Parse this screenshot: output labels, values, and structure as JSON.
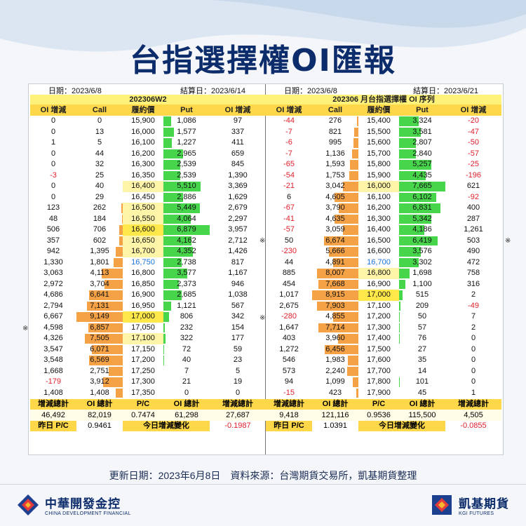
{
  "title": "台指選擇權OI匯報",
  "left": {
    "date": "日期：2023/6/8",
    "settle": "結算日：2023/6/14",
    "banner": "202306W2",
    "headers": [
      "OI 增減",
      "Call",
      "履約價",
      "Put",
      "OI 增減"
    ],
    "rows": [
      {
        "cd": "0",
        "call": "0",
        "strike": "15,900",
        "put": "1,086",
        "pd": "97",
        "cb": 0,
        "pb": 0.16
      },
      {
        "cd": "0",
        "call": "13",
        "strike": "16,000",
        "put": "1,577",
        "pd": "337",
        "cb": 0,
        "pb": 0.23
      },
      {
        "cd": "1",
        "call": "5",
        "strike": "16,100",
        "put": "1,227",
        "pd": "411",
        "cb": 0,
        "pb": 0.18
      },
      {
        "cd": "0",
        "call": "44",
        "strike": "16,200",
        "put": "2,965",
        "pd": "659",
        "cb": 0,
        "pb": 0.43
      },
      {
        "cd": "0",
        "call": "32",
        "strike": "16,300",
        "put": "2,539",
        "pd": "845",
        "cb": 0,
        "pb": 0.37
      },
      {
        "cd": "-3",
        "call": "25",
        "strike": "16,350",
        "put": "2,539",
        "pd": "1,390",
        "cb": 0,
        "pb": 0.37
      },
      {
        "cd": "0",
        "call": "40",
        "strike": "16,400",
        "put": "5,510",
        "pd": "3,369",
        "cb": 0,
        "pb": 0.8,
        "hl": 1
      },
      {
        "cd": "0",
        "call": "29",
        "strike": "16,450",
        "put": "2,886",
        "pd": "1,629",
        "cb": 0,
        "pb": 0.42
      },
      {
        "cd": "123",
        "call": "262",
        "strike": "16,500",
        "put": "5,449",
        "pd": "2,679",
        "cb": 0.03,
        "pb": 0.79,
        "hl": 1
      },
      {
        "cd": "48",
        "call": "184",
        "strike": "16,550",
        "put": "4,064",
        "pd": "2,297",
        "cb": 0.02,
        "pb": 0.59,
        "hl": 1
      },
      {
        "cd": "506",
        "call": "706",
        "strike": "16,600",
        "put": "6,879",
        "pd": "3,957",
        "cb": 0.08,
        "pb": 1,
        "hl": 2
      },
      {
        "cd": "357",
        "call": "602",
        "strike": "16,650",
        "put": "4,162",
        "pd": "2,712",
        "cb": 0.07,
        "pb": 0.6,
        "hl": 1
      },
      {
        "cd": "942",
        "call": "1,395",
        "strike": "16,700",
        "put": "4,352",
        "pd": "1,426",
        "cb": 0.15,
        "pb": 0.63,
        "hl": 1
      },
      {
        "cd": "1,330",
        "call": "1,801",
        "strike": "16,750",
        "put": "2,738",
        "pd": "817",
        "cb": 0.2,
        "pb": 0.4,
        "blue": true
      },
      {
        "cd": "3,063",
        "call": "4,113",
        "strike": "16,800",
        "put": "3,577",
        "pd": "1,167",
        "cb": 0.45,
        "pb": 0.52
      },
      {
        "cd": "2,972",
        "call": "3,704",
        "strike": "16,850",
        "put": "2,373",
        "pd": "946",
        "cb": 0.4,
        "pb": 0.34
      },
      {
        "cd": "4,686",
        "call": "6,641",
        "strike": "16,900",
        "put": "2,685",
        "pd": "1,038",
        "cb": 0.73,
        "pb": 0.39
      },
      {
        "cd": "2,794",
        "call": "7,131",
        "strike": "16,950",
        "put": "1,121",
        "pd": "567",
        "cb": 0.78,
        "pb": 0.16
      },
      {
        "cd": "6,667",
        "call": "9,149",
        "strike": "17,000",
        "put": "806",
        "pd": "342",
        "cb": 1,
        "pb": 0.12,
        "hl": 2
      },
      {
        "cd": "4,598",
        "call": "6,857",
        "strike": "17,050",
        "put": "232",
        "pd": "154",
        "cb": 0.75,
        "pb": 0.03
      },
      {
        "cd": "4,326",
        "call": "7,505",
        "strike": "17,100",
        "put": "322",
        "pd": "177",
        "cb": 0.82,
        "pb": 0.05,
        "hl": 1
      },
      {
        "cd": "3,547",
        "call": "6,071",
        "strike": "17,150",
        "put": "72",
        "pd": "59",
        "cb": 0.66,
        "pb": 0.01
      },
      {
        "cd": "3,548",
        "call": "6,569",
        "strike": "17,200",
        "put": "40",
        "pd": "23",
        "cb": 0.72,
        "pb": 0.01
      },
      {
        "cd": "1,668",
        "call": "2,751",
        "strike": "17,250",
        "put": "7",
        "pd": "5",
        "cb": 0.3,
        "pb": 0
      },
      {
        "cd": "-179",
        "call": "3,912",
        "strike": "17,300",
        "put": "21",
        "pd": "19",
        "cb": 0.43,
        "pb": 0
      },
      {
        "cd": "1,408",
        "call": "1,408",
        "strike": "17,350",
        "put": "0",
        "pd": "0",
        "cb": 0.15,
        "pb": 0
      }
    ],
    "sum_headers": [
      "增減總計",
      "OI 總計",
      "P/C",
      "OI 總計",
      "增減總計"
    ],
    "sum": [
      "46,492",
      "82,019",
      "0.7474",
      "61,298",
      "27,687"
    ],
    "pc_label": "昨日 P/C",
    "pc_value": "0.9461",
    "chg_label": "今日增減變化",
    "chg_value": "-0.1987"
  },
  "right": {
    "date": "日期：2023/6/8",
    "settle": "結算日：2023/6/21",
    "banner": "202306 月台指選擇權 OI 序列",
    "headers": [
      "OI 增減",
      "Call",
      "履約價",
      "Put",
      "OI 增減"
    ],
    "rows": [
      {
        "cd": "-44",
        "call": "276",
        "strike": "15,400",
        "put": "3,324",
        "pd": "-20",
        "cb": 0.03,
        "pb": 0.43
      },
      {
        "cd": "-7",
        "call": "821",
        "strike": "15,500",
        "put": "3,581",
        "pd": "-47",
        "cb": 0.09,
        "pb": 0.47
      },
      {
        "cd": "-6",
        "call": "995",
        "strike": "15,600",
        "put": "2,807",
        "pd": "-50",
        "cb": 0.11,
        "pb": 0.37
      },
      {
        "cd": "-7",
        "call": "1,136",
        "strike": "15,700",
        "put": "2,840",
        "pd": "-57",
        "cb": 0.13,
        "pb": 0.37
      },
      {
        "cd": "-65",
        "call": "1,593",
        "strike": "15,800",
        "put": "5,257",
        "pd": "-25",
        "cb": 0.18,
        "pb": 0.69
      },
      {
        "cd": "-54",
        "call": "1,753",
        "strike": "15,900",
        "put": "4,435",
        "pd": "-196",
        "cb": 0.2,
        "pb": 0.58
      },
      {
        "cd": "-21",
        "call": "3,042",
        "strike": "16,000",
        "put": "7,665",
        "pd": "621",
        "cb": 0.34,
        "pb": 1,
        "hl": 1
      },
      {
        "cd": "6",
        "call": "4,605",
        "strike": "16,100",
        "put": "6,102",
        "pd": "-92",
        "cb": 0.52,
        "pb": 0.8
      },
      {
        "cd": "-67",
        "call": "3,790",
        "strike": "16,200",
        "put": "6,831",
        "pd": "400",
        "cb": 0.43,
        "pb": 0.89
      },
      {
        "cd": "-41",
        "call": "4,635",
        "strike": "16,300",
        "put": "5,342",
        "pd": "287",
        "cb": 0.52,
        "pb": 0.7
      },
      {
        "cd": "-57",
        "call": "3,059",
        "strike": "16,400",
        "put": "4,186",
        "pd": "1,261",
        "cb": 0.34,
        "pb": 0.55
      },
      {
        "cd": "50",
        "call": "6,674",
        "strike": "16,500",
        "put": "6,419",
        "pd": "503",
        "cb": 0.75,
        "pb": 0.84
      },
      {
        "cd": "-230",
        "call": "5,666",
        "strike": "16,600",
        "put": "3,576",
        "pd": "490",
        "cb": 0.64,
        "pb": 0.47
      },
      {
        "cd": "44",
        "call": "4,891",
        "strike": "16,700",
        "put": "3,302",
        "pd": "472",
        "cb": 0.55,
        "pb": 0.43,
        "blue": true
      },
      {
        "cd": "885",
        "call": "8,007",
        "strike": "16,800",
        "put": "1,698",
        "pd": "758",
        "cb": 0.9,
        "pb": 0.22,
        "hl": 1
      },
      {
        "cd": "454",
        "call": "7,668",
        "strike": "16,900",
        "put": "1,100",
        "pd": "316",
        "cb": 0.86,
        "pb": 0.14
      },
      {
        "cd": "1,017",
        "call": "8,915",
        "strike": "17,000",
        "put": "515",
        "pd": "2",
        "cb": 1,
        "pb": 0.07,
        "hl": 2
      },
      {
        "cd": "2,675",
        "call": "7,903",
        "strike": "17,100",
        "put": "209",
        "pd": "-49",
        "cb": 0.89,
        "pb": 0.03
      },
      {
        "cd": "-280",
        "call": "4,855",
        "strike": "17,200",
        "put": "50",
        "pd": "7",
        "cb": 0.54,
        "pb": 0.01
      },
      {
        "cd": "1,647",
        "call": "7,714",
        "strike": "17,300",
        "put": "57",
        "pd": "2",
        "cb": 0.87,
        "pb": 0.01
      },
      {
        "cd": "403",
        "call": "3,960",
        "strike": "17,400",
        "put": "76",
        "pd": "0",
        "cb": 0.44,
        "pb": 0.01
      },
      {
        "cd": "1,272",
        "call": "6,456",
        "strike": "17,500",
        "put": "27",
        "pd": "0",
        "cb": 0.72,
        "pb": 0
      },
      {
        "cd": "546",
        "call": "1,983",
        "strike": "17,600",
        "put": "35",
        "pd": "0",
        "cb": 0.22,
        "pb": 0
      },
      {
        "cd": "573",
        "call": "2,240",
        "strike": "17,700",
        "put": "14",
        "pd": "0",
        "cb": 0.25,
        "pb": 0
      },
      {
        "cd": "94",
        "call": "1,099",
        "strike": "17,800",
        "put": "101",
        "pd": "0",
        "cb": 0.12,
        "pb": 0.01
      },
      {
        "cd": "-15",
        "call": "423",
        "strike": "17,900",
        "put": "45",
        "pd": "1",
        "cb": 0.05,
        "pb": 0
      }
    ],
    "sum_headers": [
      "增減總計",
      "OI 總計",
      "P/C",
      "OI 總計",
      "增減總計"
    ],
    "sum": [
      "9,418",
      "121,116",
      "0.9536",
      "115,500",
      "4,505"
    ],
    "pc_label": "昨日 P/C",
    "pc_value": "1.0391",
    "chg_label": "今日增減變化",
    "chg_value": "-0.0855"
  },
  "atm_marker": "※",
  "footnote": "更新日期：2023年6月8日　資料來源：台灣期貨交易所，凱基期貨整理",
  "logo_left": {
    "main": "中華開發金控",
    "sub": "CHINA DEVELOPMENT FINANCIAL"
  },
  "logo_right": {
    "main": "凱基期貨",
    "sub": "KGI FUTURES"
  },
  "colors": {
    "navy": "#0d2c6b",
    "orange_bar": "#f5a246",
    "green_bar": "#47d64b",
    "header_yellow": "#ffd84a",
    "negative": "#e0202c",
    "atm_blue": "#1a73d9"
  }
}
